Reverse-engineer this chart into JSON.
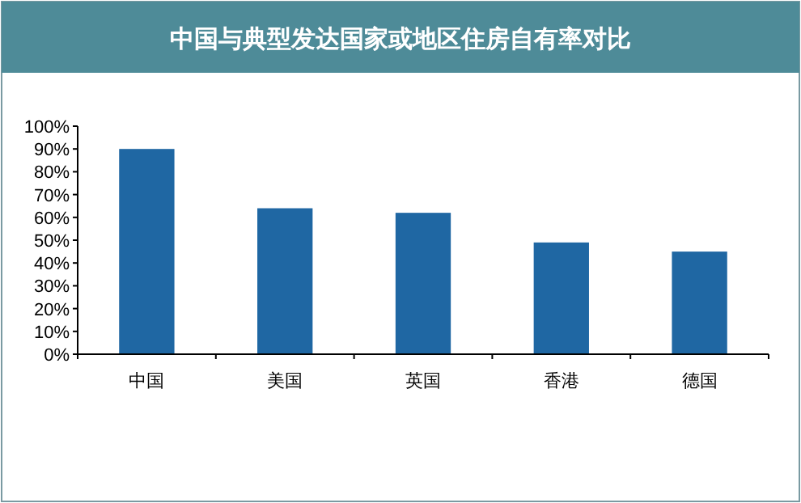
{
  "chart_data": {
    "type": "bar",
    "title": "中国与典型发达国家或地区住房自有率对比",
    "categories": [
      "中国",
      "美国",
      "英国",
      "香港",
      "德国"
    ],
    "values": [
      90,
      64,
      62,
      49,
      45
    ],
    "color": "#1f67a3",
    "ylim": [
      0,
      100
    ],
    "yticks": [
      {
        "value": 0,
        "label": "0%"
      },
      {
        "value": 10,
        "label": "10%"
      },
      {
        "value": 20,
        "label": "20%"
      },
      {
        "value": 30,
        "label": "30%"
      },
      {
        "value": 40,
        "label": "40%"
      },
      {
        "value": 50,
        "label": "50%"
      },
      {
        "value": 60,
        "label": "60%"
      },
      {
        "value": 70,
        "label": "70%"
      },
      {
        "value": 80,
        "label": "80%"
      },
      {
        "value": 90,
        "label": "90%"
      },
      {
        "value": 100,
        "label": "100%"
      }
    ],
    "grid": false
  }
}
